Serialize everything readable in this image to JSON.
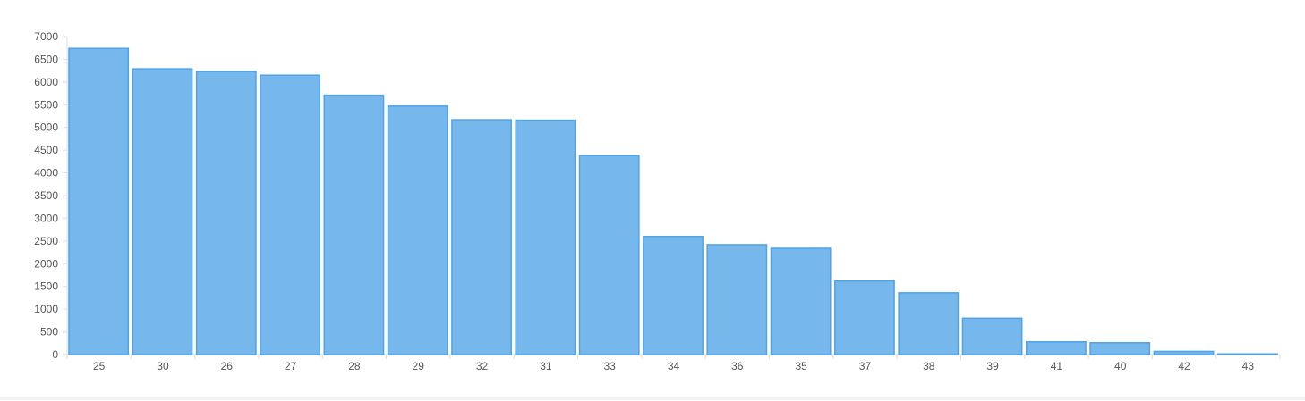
{
  "colors": {
    "bar_fill": "#76b7ec",
    "bar_stroke": "#4fa3e8",
    "axis": "#dddddd",
    "gridline": "#f0f0f0",
    "tick_label": "#555555"
  },
  "chart_data": {
    "type": "bar",
    "title": "",
    "xlabel": "",
    "ylabel": "",
    "categories": [
      "25",
      "30",
      "26",
      "27",
      "28",
      "29",
      "32",
      "31",
      "33",
      "34",
      "36",
      "35",
      "37",
      "38",
      "39",
      "41",
      "40",
      "42",
      "43"
    ],
    "values": [
      6740,
      6290,
      6230,
      6150,
      5710,
      5470,
      5170,
      5160,
      4380,
      2600,
      2420,
      2340,
      1620,
      1360,
      800,
      280,
      260,
      70,
      15
    ],
    "ylim": [
      0,
      7000
    ],
    "yticks": [
      0,
      500,
      1000,
      1500,
      2000,
      2500,
      3000,
      3500,
      4000,
      4500,
      5000,
      5500,
      6000,
      6500,
      7000
    ],
    "grid": false,
    "legend": "none"
  }
}
